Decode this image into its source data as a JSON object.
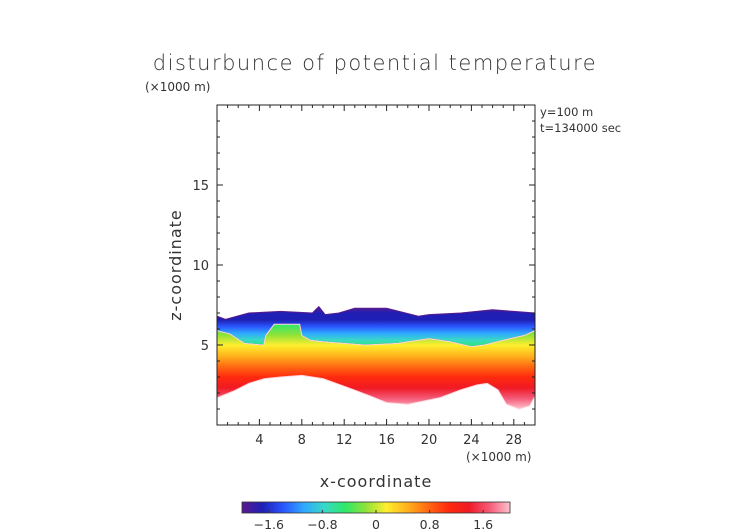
{
  "chart_data": {
    "type": "heatmap",
    "title": "disturbunce of potential temperature",
    "xlabel": "x-coordinate",
    "ylabel": "z-coordinate",
    "x_unit": "(×1000 m)",
    "y_unit": "(×1000 m)",
    "annotations": [
      "y=100 m",
      "t=134000 sec"
    ],
    "xlim": [
      0,
      30
    ],
    "ylim": [
      0,
      20
    ],
    "x_ticks": [
      4,
      8,
      12,
      16,
      20,
      24,
      28
    ],
    "y_ticks": [
      5,
      10,
      15
    ],
    "colorbar": {
      "range": [
        -2.0,
        2.0
      ],
      "ticks": [
        -1.6,
        -0.8,
        0,
        0.8,
        1.6
      ],
      "tick_labels": [
        "−1.6",
        "−0.8",
        "0",
        "0.8",
        "1.6"
      ],
      "colors": [
        "#5a1a8c",
        "#1f1fb5",
        "#2a56ff",
        "#2fa8ff",
        "#38d8c8",
        "#2ee86a",
        "#8ee23a",
        "#ffee2e",
        "#ffb21c",
        "#ff6a12",
        "#ff2a0e",
        "#f01a24",
        "#f45a78",
        "#ffc2cc"
      ]
    },
    "regions": [
      {
        "name": "upper",
        "value": -1.6,
        "x": [
          0,
          0.8,
          3,
          6,
          9,
          9.6,
          10.2,
          11.5,
          13,
          16,
          19,
          20,
          23,
          26,
          28,
          30,
          30,
          29,
          27,
          25.2,
          24,
          22,
          20,
          17,
          14,
          12,
          10,
          8.8,
          8,
          7.8,
          5.4,
          4.6,
          4.4,
          2.6,
          1.2,
          0
        ],
        "y": [
          6.8,
          6.6,
          7.0,
          7.1,
          7.0,
          7.4,
          6.9,
          7.0,
          7.3,
          7.3,
          6.8,
          6.9,
          7.0,
          7.2,
          7.1,
          7.0,
          5.9,
          5.6,
          5.3,
          5.0,
          4.9,
          5.2,
          5.4,
          5.1,
          5.0,
          5.1,
          5.2,
          5.3,
          5.6,
          6.3,
          6.3,
          5.6,
          5.0,
          5.1,
          5.7,
          5.9
        ]
      },
      {
        "name": "lower",
        "value": 1.6,
        "x": [
          0,
          1.2,
          2.6,
          4.4,
          4.6,
          5.4,
          7.8,
          8,
          8.8,
          10,
          12,
          14,
          17,
          20,
          22,
          24,
          25.2,
          27,
          29,
          30,
          30,
          29.5,
          28.5,
          27.3,
          26.5,
          25.5,
          24.5,
          23,
          21,
          18,
          16,
          14.5,
          12.5,
          10,
          8,
          6,
          4.5,
          3,
          1.5,
          0
        ],
        "y": [
          5.9,
          5.7,
          5.1,
          5.0,
          5.6,
          6.3,
          6.3,
          5.6,
          5.3,
          5.2,
          5.1,
          5.0,
          5.1,
          5.4,
          5.2,
          4.9,
          5.0,
          5.3,
          5.6,
          5.9,
          1.8,
          1.2,
          1.0,
          1.3,
          2.2,
          2.6,
          2.5,
          2.2,
          1.7,
          1.3,
          1.4,
          1.8,
          2.3,
          2.9,
          3.1,
          3.0,
          2.9,
          2.6,
          2.1,
          1.7
        ]
      }
    ]
  }
}
